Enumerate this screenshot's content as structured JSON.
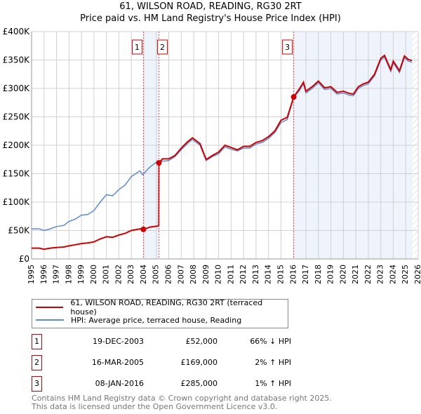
{
  "chart_data": {
    "type": "line",
    "title": "61, WILSON ROAD, READING, RG30 2RT",
    "subtitle": "Price paid vs. HM Land Registry's House Price Index (HPI)",
    "xlim": [
      1995,
      2026
    ],
    "ylim": [
      0,
      400000
    ],
    "yticks": [
      {
        "v": 0,
        "label": "£0"
      },
      {
        "v": 50000,
        "label": "£50K"
      },
      {
        "v": 100000,
        "label": "£100K"
      },
      {
        "v": 150000,
        "label": "£150K"
      },
      {
        "v": 200000,
        "label": "£200K"
      },
      {
        "v": 250000,
        "label": "£250K"
      },
      {
        "v": 300000,
        "label": "£300K"
      },
      {
        "v": 350000,
        "label": "£350K"
      },
      {
        "v": 400000,
        "label": "£400K"
      }
    ],
    "xticks": [
      "1995",
      "1996",
      "1997",
      "1998",
      "1999",
      "2000",
      "2001",
      "2002",
      "2003",
      "2004",
      "2005",
      "2006",
      "2007",
      "2008",
      "2009",
      "2010",
      "2011",
      "2012",
      "2013",
      "2014",
      "2015",
      "2016",
      "2017",
      "2018",
      "2019",
      "2020",
      "2021",
      "2022",
      "2023",
      "2024",
      "2025",
      "2026"
    ],
    "grid": true,
    "series": [
      {
        "name": "HPI: Average price, terraced house, Reading",
        "color": "#5b8bd0",
        "x": [
          1995,
          1995.6,
          1996,
          1996.5,
          1997,
          1997.6,
          1998,
          1998.5,
          1999,
          1999.5,
          2000,
          2000.5,
          2001,
          2001.5,
          2002,
          2002.5,
          2003,
          2003.7,
          2003.9,
          2004.5,
          2005,
          2005.5,
          2006,
          2006.5,
          2007,
          2007.5,
          2007.9,
          2008.5,
          2009,
          2009.5,
          2010,
          2010.5,
          2011,
          2011.5,
          2012,
          2012.5,
          2013,
          2013.5,
          2014,
          2014.5,
          2015,
          2015.5,
          2016,
          2016.5,
          2016.8,
          2017,
          2017.5,
          2018,
          2018.5,
          2019,
          2019.5,
          2020,
          2020.5,
          2020.8,
          2021.2,
          2021.6,
          2022,
          2022.5,
          2023,
          2023.3,
          2023.6,
          2023.8,
          2024,
          2024.5,
          2024.9,
          2025.2,
          2025.5
        ],
        "y": [
          53000,
          53000,
          50000,
          53000,
          57000,
          59000,
          66000,
          70000,
          77000,
          78000,
          85000,
          100000,
          113000,
          111000,
          122000,
          130000,
          145000,
          155000,
          148000,
          162000,
          170000,
          172000,
          173000,
          180000,
          192000,
          203000,
          210000,
          200000,
          173000,
          180000,
          185000,
          197000,
          193000,
          190000,
          195000,
          195000,
          202000,
          205000,
          212000,
          222000,
          240000,
          245000,
          283000,
          297000,
          308000,
          292000,
          300000,
          310000,
          298000,
          300000,
          290000,
          292000,
          288000,
          287000,
          300000,
          305000,
          308000,
          322000,
          350000,
          355000,
          340000,
          330000,
          345000,
          328000,
          354000,
          348000,
          346000
        ]
      },
      {
        "name": "61, WILSON ROAD, READING, RG30 2RT (terraced house)",
        "color": "#cc0000",
        "x": [
          1995,
          1995.6,
          1996,
          1996.5,
          1997,
          1997.6,
          1998,
          1998.5,
          1999,
          1999.5,
          2000,
          2000.5,
          2001,
          2001.5,
          2002,
          2002.5,
          2003,
          2003.7,
          2003.97,
          2004.5,
          2005.2,
          2005.21,
          2005.5,
          2006,
          2006.5,
          2007,
          2007.5,
          2007.9,
          2008.5,
          2009,
          2009.5,
          2010,
          2010.5,
          2011,
          2011.5,
          2012,
          2012.5,
          2013,
          2013.5,
          2014,
          2014.5,
          2015,
          2015.5,
          2016.02,
          2016.5,
          2016.8,
          2017,
          2017.5,
          2018,
          2018.5,
          2019,
          2019.5,
          2020,
          2020.5,
          2020.8,
          2021.2,
          2021.6,
          2022,
          2022.5,
          2023,
          2023.3,
          2023.6,
          2023.8,
          2024,
          2024.5,
          2024.9,
          2025.2,
          2025.5
        ],
        "y": [
          19000,
          19000,
          17000,
          19000,
          20000,
          21000,
          23000,
          25000,
          27000,
          28000,
          30000,
          35000,
          39000,
          38000,
          42000,
          45000,
          50000,
          53000,
          52000,
          56000,
          58000,
          169000,
          176000,
          176000,
          182000,
          195000,
          206000,
          213000,
          203000,
          175000,
          182000,
          188000,
          200000,
          196000,
          192000,
          198000,
          198000,
          205000,
          208000,
          215000,
          225000,
          244000,
          249000,
          285000,
          300000,
          311000,
          295000,
          303000,
          313000,
          301000,
          303000,
          293000,
          295000,
          291000,
          290000,
          303000,
          308000,
          311000,
          325000,
          353000,
          358000,
          343000,
          333000,
          348000,
          331000,
          357000,
          351000,
          349000
        ]
      }
    ],
    "sales": [
      {
        "n": "1",
        "date": "19-DEC-2003",
        "price": "£52,000",
        "hpi": "66% ↓ HPI",
        "x": 2003.97,
        "y": 52000
      },
      {
        "n": "2",
        "date": "16-MAR-2005",
        "price": "£169,000",
        "hpi": "2% ↑ HPI",
        "x": 2005.21,
        "y": 169000
      },
      {
        "n": "3",
        "date": "08-JAN-2016",
        "price": "£285,000",
        "hpi": "1% ↑ HPI",
        "x": 2016.02,
        "y": 285000
      }
    ],
    "legend_placement": "below"
  },
  "footer": {
    "line1": "Contains HM Land Registry data © Crown copyright and database right 2025.",
    "line2": "This data is licensed under the Open Government Licence v3.0."
  }
}
